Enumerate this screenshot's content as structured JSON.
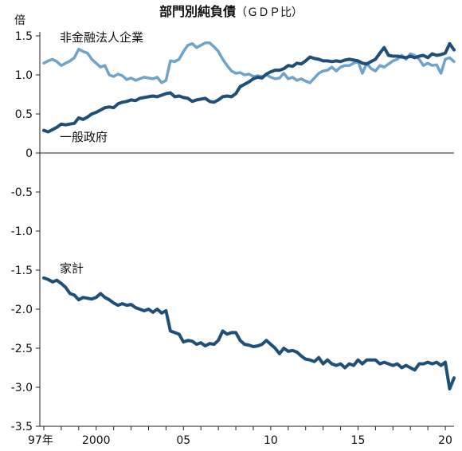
{
  "chart_data": {
    "type": "line",
    "title": "部門別純負債",
    "title_suffix": "（ＧＤＰ比）",
    "y_unit": "倍",
    "ylim": [
      -3.5,
      1.5
    ],
    "y_ticks": [
      "1.5",
      "1.0",
      "0.5",
      "0",
      "-0.5",
      "-1.0",
      "-1.5",
      "-2.0",
      "-2.5",
      "-3.0",
      "-3.5"
    ],
    "xlim": [
      1997,
      2020.5
    ],
    "x_ticks": [
      {
        "value": 1997,
        "label": "97年"
      },
      {
        "value": 2000,
        "label": "2000"
      },
      {
        "value": 2005,
        "label": "05"
      },
      {
        "value": 2010,
        "label": "10"
      },
      {
        "value": 2015,
        "label": "15"
      },
      {
        "value": 2020,
        "label": "20"
      }
    ],
    "grid": false,
    "series": [
      {
        "name": "非金融法人企業",
        "color": "#6fa3cc",
        "x": [
          1997.0,
          1997.25,
          1997.5,
          1997.75,
          1998.0,
          1998.25,
          1998.5,
          1998.75,
          1999.0,
          1999.25,
          1999.5,
          1999.75,
          2000.0,
          2000.25,
          2000.5,
          2000.75,
          2001.0,
          2001.25,
          2001.5,
          2001.75,
          2002.0,
          2002.25,
          2002.5,
          2002.75,
          2003.0,
          2003.25,
          2003.5,
          2003.75,
          2004.0,
          2004.25,
          2004.5,
          2004.75,
          2005.0,
          2005.25,
          2005.5,
          2005.75,
          2006.0,
          2006.25,
          2006.5,
          2006.75,
          2007.0,
          2007.25,
          2007.5,
          2007.75,
          2008.0,
          2008.25,
          2008.5,
          2008.75,
          2009.0,
          2009.25,
          2009.5,
          2009.75,
          2010.0,
          2010.25,
          2010.5,
          2010.75,
          2011.0,
          2011.25,
          2011.5,
          2011.75,
          2012.0,
          2012.25,
          2012.5,
          2012.75,
          2013.0,
          2013.25,
          2013.5,
          2013.75,
          2014.0,
          2014.25,
          2014.5,
          2014.75,
          2015.0,
          2015.25,
          2015.5,
          2015.75,
          2016.0,
          2016.25,
          2016.5,
          2016.75,
          2017.0,
          2017.25,
          2017.5,
          2017.75,
          2018.0,
          2018.25,
          2018.5,
          2018.75,
          2019.0,
          2019.25,
          2019.5,
          2019.75,
          2020.0,
          2020.25,
          2020.5
        ],
        "values": [
          1.15,
          1.18,
          1.2,
          1.17,
          1.12,
          1.15,
          1.18,
          1.22,
          1.33,
          1.3,
          1.28,
          1.2,
          1.15,
          1.1,
          1.12,
          1.0,
          0.98,
          1.01,
          0.99,
          0.94,
          0.96,
          0.93,
          0.95,
          0.97,
          0.96,
          0.95,
          0.97,
          0.9,
          0.93,
          1.18,
          1.17,
          1.2,
          1.3,
          1.38,
          1.4,
          1.35,
          1.38,
          1.41,
          1.41,
          1.36,
          1.3,
          1.2,
          1.12,
          1.05,
          1.02,
          1.03,
          1.0,
          1.01,
          0.98,
          0.99,
          0.98,
          1.0,
          0.97,
          0.95,
          0.96,
          1.02,
          0.95,
          0.97,
          0.93,
          0.95,
          0.92,
          0.9,
          0.96,
          1.02,
          1.05,
          1.06,
          1.1,
          1.05,
          1.1,
          1.12,
          1.12,
          1.15,
          1.17,
          1.02,
          1.15,
          1.08,
          1.05,
          1.12,
          1.1,
          1.14,
          1.18,
          1.2,
          1.25,
          1.2,
          1.27,
          1.25,
          1.2,
          1.12,
          1.15,
          1.12,
          1.13,
          1.02,
          1.2,
          1.22,
          1.17
        ]
      },
      {
        "name": "一般政府",
        "color": "#1f4e79",
        "x": [
          1997.0,
          1997.25,
          1997.5,
          1997.75,
          1998.0,
          1998.25,
          1998.5,
          1998.75,
          1999.0,
          1999.25,
          1999.5,
          1999.75,
          2000.0,
          2000.25,
          2000.5,
          2000.75,
          2001.0,
          2001.25,
          2001.5,
          2001.75,
          2002.0,
          2002.25,
          2002.5,
          2002.75,
          2003.0,
          2003.25,
          2003.5,
          2003.75,
          2004.0,
          2004.25,
          2004.5,
          2004.75,
          2005.0,
          2005.25,
          2005.5,
          2005.75,
          2006.0,
          2006.25,
          2006.5,
          2006.75,
          2007.0,
          2007.25,
          2007.5,
          2007.75,
          2008.0,
          2008.25,
          2008.5,
          2008.75,
          2009.0,
          2009.25,
          2009.5,
          2009.75,
          2010.0,
          2010.25,
          2010.5,
          2010.75,
          2011.0,
          2011.25,
          2011.5,
          2011.75,
          2012.0,
          2012.25,
          2012.5,
          2012.75,
          2013.0,
          2013.25,
          2013.5,
          2013.75,
          2014.0,
          2014.25,
          2014.5,
          2014.75,
          2015.0,
          2015.25,
          2015.5,
          2015.75,
          2016.0,
          2016.25,
          2016.5,
          2016.75,
          2017.0,
          2017.25,
          2017.5,
          2017.75,
          2018.0,
          2018.25,
          2018.5,
          2018.75,
          2019.0,
          2019.25,
          2019.5,
          2019.75,
          2020.0,
          2020.25,
          2020.5
        ],
        "values": [
          0.29,
          0.27,
          0.3,
          0.33,
          0.37,
          0.36,
          0.37,
          0.38,
          0.45,
          0.43,
          0.46,
          0.5,
          0.52,
          0.55,
          0.58,
          0.59,
          0.58,
          0.63,
          0.65,
          0.66,
          0.68,
          0.67,
          0.7,
          0.71,
          0.72,
          0.73,
          0.72,
          0.74,
          0.76,
          0.77,
          0.72,
          0.73,
          0.71,
          0.7,
          0.66,
          0.68,
          0.69,
          0.7,
          0.66,
          0.65,
          0.68,
          0.72,
          0.73,
          0.72,
          0.76,
          0.85,
          0.88,
          0.91,
          0.95,
          0.97,
          0.96,
          1.01,
          1.04,
          1.06,
          1.06,
          1.08,
          1.12,
          1.11,
          1.15,
          1.14,
          1.18,
          1.23,
          1.21,
          1.2,
          1.18,
          1.18,
          1.17,
          1.18,
          1.17,
          1.19,
          1.2,
          1.19,
          1.18,
          1.15,
          1.14,
          1.17,
          1.2,
          1.28,
          1.35,
          1.25,
          1.24,
          1.24,
          1.23,
          1.22,
          1.24,
          1.22,
          1.24,
          1.25,
          1.22,
          1.27,
          1.25,
          1.26,
          1.28,
          1.4,
          1.32
        ]
      },
      {
        "name": "家計",
        "color": "#1f4e79",
        "x": [
          1997.0,
          1997.25,
          1997.5,
          1997.75,
          1998.0,
          1998.25,
          1998.5,
          1998.75,
          1999.0,
          1999.25,
          1999.5,
          1999.75,
          2000.0,
          2000.25,
          2000.5,
          2000.75,
          2001.0,
          2001.25,
          2001.5,
          2001.75,
          2002.0,
          2002.25,
          2002.5,
          2002.75,
          2003.0,
          2003.25,
          2003.5,
          2003.75,
          2004.0,
          2004.25,
          2004.5,
          2004.75,
          2005.0,
          2005.25,
          2005.5,
          2005.75,
          2006.0,
          2006.25,
          2006.5,
          2006.75,
          2007.0,
          2007.25,
          2007.5,
          2007.75,
          2008.0,
          2008.25,
          2008.5,
          2008.75,
          2009.0,
          2009.25,
          2009.5,
          2009.75,
          2010.0,
          2010.25,
          2010.5,
          2010.75,
          2011.0,
          2011.25,
          2011.5,
          2011.75,
          2012.0,
          2012.25,
          2012.5,
          2012.75,
          2013.0,
          2013.25,
          2013.5,
          2013.75,
          2014.0,
          2014.25,
          2014.5,
          2014.75,
          2015.0,
          2015.25,
          2015.5,
          2015.75,
          2016.0,
          2016.25,
          2016.5,
          2016.75,
          2017.0,
          2017.25,
          2017.5,
          2017.75,
          2018.0,
          2018.25,
          2018.5,
          2018.75,
          2019.0,
          2019.25,
          2019.5,
          2019.75,
          2020.0,
          2020.25,
          2020.5
        ],
        "values": [
          -1.6,
          -1.62,
          -1.65,
          -1.63,
          -1.67,
          -1.72,
          -1.8,
          -1.82,
          -1.88,
          -1.85,
          -1.86,
          -1.87,
          -1.85,
          -1.8,
          -1.85,
          -1.88,
          -1.92,
          -1.95,
          -1.93,
          -1.95,
          -1.94,
          -1.98,
          -2.0,
          -2.02,
          -2.0,
          -2.04,
          -2.0,
          -2.05,
          -2.02,
          -2.28,
          -2.3,
          -2.32,
          -2.42,
          -2.4,
          -2.41,
          -2.45,
          -2.43,
          -2.47,
          -2.44,
          -2.45,
          -2.4,
          -2.28,
          -2.32,
          -2.3,
          -2.3,
          -2.4,
          -2.45,
          -2.46,
          -2.48,
          -2.47,
          -2.45,
          -2.4,
          -2.45,
          -2.5,
          -2.57,
          -2.5,
          -2.54,
          -2.53,
          -2.55,
          -2.6,
          -2.64,
          -2.65,
          -2.67,
          -2.62,
          -2.7,
          -2.65,
          -2.7,
          -2.72,
          -2.7,
          -2.75,
          -2.7,
          -2.72,
          -2.65,
          -2.7,
          -2.65,
          -2.65,
          -2.65,
          -2.7,
          -2.68,
          -2.7,
          -2.72,
          -2.7,
          -2.75,
          -2.72,
          -2.75,
          -2.78,
          -2.7,
          -2.7,
          -2.68,
          -2.7,
          -2.68,
          -2.72,
          -2.68,
          -3.02,
          -2.88
        ]
      }
    ]
  }
}
